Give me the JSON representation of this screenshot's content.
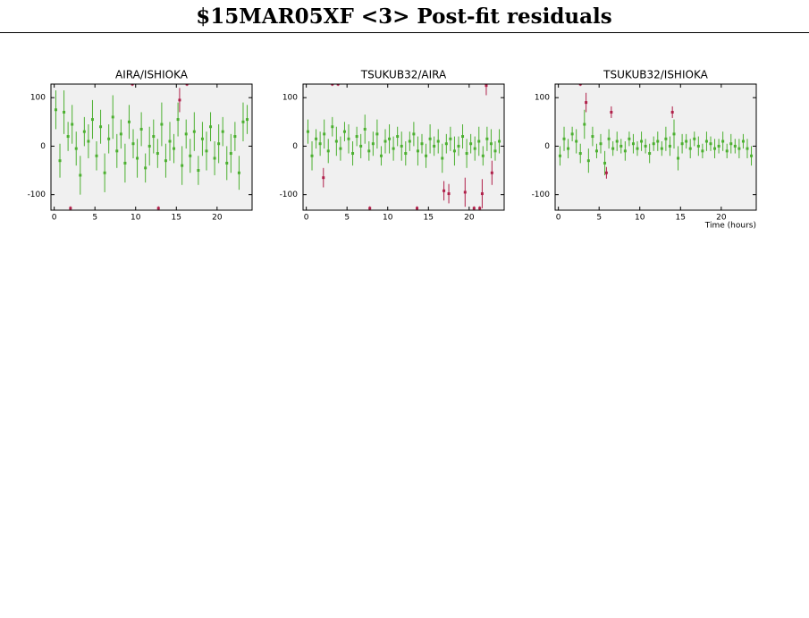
{
  "title": "$15MAR05XF <3> Post-fit residuals",
  "chart_data": [
    {
      "type": "scatter",
      "title": "AIRA/ISHIOKA",
      "xlim": [
        -0.4,
        24.3
      ],
      "ylim": [
        -132,
        128
      ],
      "xticks": [
        0,
        5,
        10,
        15,
        20
      ],
      "yticks": [
        -100,
        0,
        100
      ],
      "series": [
        {
          "color": "#4cb030",
          "x": [
            0.2,
            0.7,
            1.2,
            1.7,
            2.2,
            2.7,
            3.2,
            3.7,
            4.2,
            4.7,
            5.2,
            5.7,
            6.2,
            6.7,
            7.2,
            7.7,
            8.2,
            8.7,
            9.2,
            9.7,
            10.2,
            10.7,
            11.2,
            11.7,
            12.2,
            12.7,
            13.2,
            13.7,
            14.2,
            14.7,
            15.2,
            15.7,
            16.2,
            16.7,
            17.2,
            17.7,
            18.2,
            18.7,
            19.2,
            19.7,
            20.2,
            20.7,
            21.2,
            21.7,
            22.2,
            22.7,
            23.2,
            23.7
          ],
          "values": [
            75,
            -30,
            70,
            20,
            45,
            -5,
            -60,
            30,
            10,
            55,
            -20,
            40,
            -55,
            15,
            60,
            -10,
            25,
            -35,
            50,
            5,
            -25,
            35,
            -45,
            0,
            20,
            -15,
            45,
            -30,
            10,
            -5,
            55,
            -40,
            25,
            -20,
            30,
            -50,
            15,
            -10,
            40,
            -25,
            5,
            30,
            -35,
            -15,
            20,
            -55,
            50,
            55
          ],
          "errors": [
            40,
            35,
            45,
            30,
            40,
            35,
            40,
            30,
            35,
            40,
            30,
            35,
            40,
            30,
            45,
            35,
            30,
            40,
            35,
            30,
            40,
            35,
            30,
            40,
            35,
            30,
            45,
            35,
            40,
            30,
            35,
            40,
            30,
            35,
            40,
            30,
            35,
            40,
            30,
            35,
            40,
            30,
            35,
            40,
            30,
            35,
            40,
            30
          ]
        },
        {
          "color": "#b0204a",
          "x": [
            2.0,
            9.6,
            12.8,
            15.4,
            16.3
          ],
          "values": [
            -128,
            128,
            -128,
            95,
            128
          ],
          "errors": [
            4,
            4,
            4,
            25,
            4
          ]
        }
      ]
    },
    {
      "type": "scatter",
      "title": "TSUKUB32/AIRA",
      "xlim": [
        -0.4,
        24.3
      ],
      "ylim": [
        -132,
        128
      ],
      "xticks": [
        0,
        5,
        10,
        15,
        20
      ],
      "yticks": [
        -100,
        0,
        100
      ],
      "series": [
        {
          "color": "#4cb030",
          "x": [
            0.2,
            0.7,
            1.2,
            1.7,
            2.2,
            2.7,
            3.2,
            3.7,
            4.2,
            4.7,
            5.2,
            5.7,
            6.2,
            6.7,
            7.2,
            7.7,
            8.2,
            8.7,
            9.2,
            9.7,
            10.2,
            10.7,
            11.2,
            11.7,
            12.2,
            12.7,
            13.2,
            13.7,
            14.2,
            14.7,
            15.2,
            15.7,
            16.2,
            16.7,
            17.2,
            17.7,
            18.2,
            18.7,
            19.2,
            19.7,
            20.2,
            20.7,
            21.2,
            21.7,
            22.2,
            22.7,
            23.2,
            23.7
          ],
          "values": [
            30,
            -20,
            15,
            5,
            25,
            -10,
            40,
            10,
            -5,
            30,
            15,
            -15,
            20,
            0,
            35,
            -10,
            5,
            25,
            -20,
            10,
            15,
            -5,
            20,
            0,
            -15,
            10,
            25,
            -10,
            5,
            -20,
            15,
            0,
            10,
            -25,
            5,
            15,
            -10,
            0,
            20,
            -15,
            5,
            -5,
            10,
            -20,
            15,
            5,
            -10,
            10
          ],
          "errors": [
            25,
            30,
            20,
            25,
            30,
            25,
            20,
            30,
            25,
            20,
            30,
            25,
            20,
            25,
            30,
            20,
            25,
            30,
            20,
            25,
            30,
            25,
            20,
            30,
            25,
            20,
            25,
            30,
            20,
            25,
            30,
            20,
            25,
            30,
            20,
            25,
            30,
            20,
            25,
            30,
            20,
            25,
            30,
            20,
            25,
            30,
            20,
            25
          ]
        },
        {
          "color": "#b0204a",
          "x": [
            2.1,
            3.2,
            3.9,
            7.8,
            13.6,
            16.9,
            17.5,
            19.5,
            20.6,
            21.3,
            21.6,
            22.1,
            22.8
          ],
          "values": [
            -65,
            128,
            128,
            -128,
            -128,
            -92,
            -98,
            -95,
            -128,
            -128,
            -98,
            125,
            -55
          ],
          "errors": [
            20,
            4,
            4,
            4,
            4,
            20,
            20,
            30,
            4,
            4,
            30,
            20,
            25
          ]
        }
      ]
    },
    {
      "type": "scatter",
      "title": "TSUKUB32/ISHIOKA",
      "xlabel": "Time (hours)",
      "xlim": [
        -0.4,
        24.3
      ],
      "ylim": [
        -132,
        128
      ],
      "xticks": [
        0,
        5,
        10,
        15,
        20
      ],
      "yticks": [
        -100,
        0,
        100
      ],
      "series": [
        {
          "color": "#4cb030",
          "x": [
            0.2,
            0.7,
            1.2,
            1.7,
            2.2,
            2.7,
            3.2,
            3.7,
            4.2,
            4.7,
            5.2,
            5.7,
            6.2,
            6.7,
            7.2,
            7.7,
            8.2,
            8.7,
            9.2,
            9.7,
            10.2,
            10.7,
            11.2,
            11.7,
            12.2,
            12.7,
            13.2,
            13.7,
            14.2,
            14.7,
            15.2,
            15.7,
            16.2,
            16.7,
            17.2,
            17.7,
            18.2,
            18.7,
            19.2,
            19.7,
            20.2,
            20.7,
            21.2,
            21.7,
            22.2,
            22.7,
            23.2,
            23.7
          ],
          "values": [
            -20,
            15,
            -5,
            25,
            10,
            -15,
            45,
            -30,
            20,
            -10,
            5,
            -35,
            15,
            -5,
            10,
            0,
            -10,
            15,
            5,
            -5,
            10,
            0,
            -15,
            5,
            10,
            -5,
            15,
            0,
            25,
            -25,
            5,
            10,
            -5,
            15,
            0,
            -10,
            10,
            5,
            -5,
            0,
            10,
            -10,
            5,
            0,
            -5,
            10,
            -5,
            -20
          ],
          "errors": [
            20,
            25,
            20,
            15,
            25,
            20,
            30,
            25,
            20,
            15,
            20,
            25,
            20,
            15,
            20,
            15,
            20,
            15,
            20,
            15,
            20,
            15,
            20,
            15,
            20,
            15,
            25,
            20,
            30,
            25,
            20,
            15,
            20,
            15,
            20,
            15,
            20,
            15,
            20,
            15,
            20,
            15,
            20,
            15,
            20,
            15,
            20,
            20
          ]
        },
        {
          "color": "#b0204a",
          "x": [
            2.7,
            3.4,
            5.9,
            6.5,
            14.0
          ],
          "values": [
            128,
            90,
            -55,
            70,
            70
          ],
          "errors": [
            4,
            20,
            12,
            12,
            12
          ]
        }
      ]
    }
  ]
}
